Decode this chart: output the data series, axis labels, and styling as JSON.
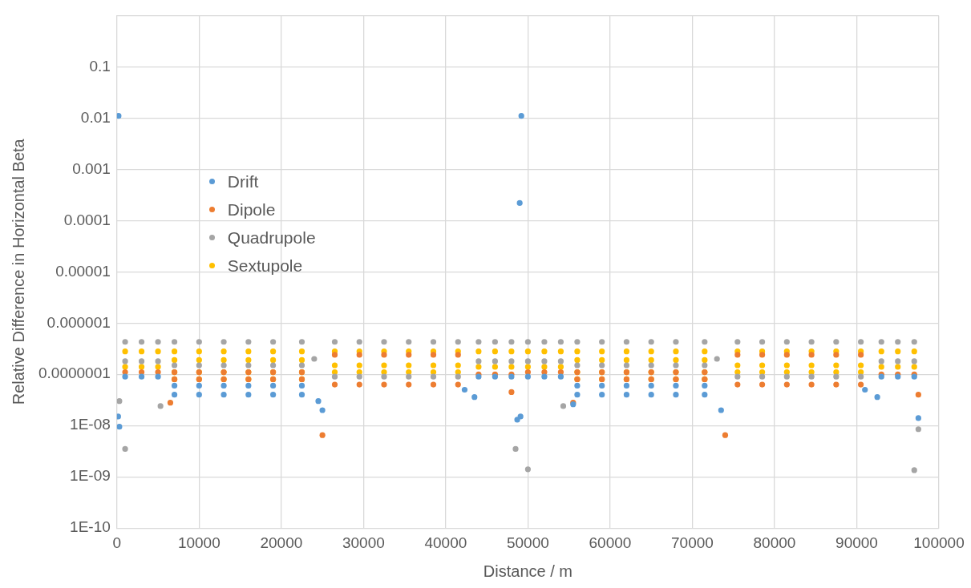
{
  "chart_data": {
    "type": "scatter",
    "xlabel": "Distance / m",
    "ylabel": "Relative Difference in Horizontal Beta",
    "xlim": [
      0,
      100000
    ],
    "xticks": [
      0,
      10000,
      20000,
      30000,
      40000,
      50000,
      60000,
      70000,
      80000,
      90000,
      100000
    ],
    "ylim": [
      1e-10,
      1
    ],
    "log": "y",
    "yticks": [
      {
        "value": 1e-10,
        "label": "1E-10"
      },
      {
        "value": 1e-09,
        "label": "1E-09"
      },
      {
        "value": 1e-08,
        "label": "1E-08"
      },
      {
        "value": 1e-07,
        "label": "0.0000001"
      },
      {
        "value": 1e-06,
        "label": "0.000001"
      },
      {
        "value": 1e-05,
        "label": "0.00001"
      },
      {
        "value": 0.0001,
        "label": "0.0001"
      },
      {
        "value": 0.001,
        "label": "0.001"
      },
      {
        "value": 0.01,
        "label": "0.01"
      },
      {
        "value": 0.1,
        "label": "0.1"
      },
      {
        "value": 1,
        "label": null
      }
    ],
    "grid": true,
    "legend": "top left",
    "marker": "circle",
    "series": [
      {
        "name": "Drift",
        "color": "#5b9bd5",
        "x": [
          7000,
          10000,
          13000,
          16000,
          19000,
          22500,
          56000,
          59000,
          62000,
          65000,
          68000,
          71500,
          7000,
          10000,
          13000,
          16000,
          19000,
          22500,
          56000,
          59000,
          62000,
          65000,
          68000,
          71500,
          1000,
          3000,
          5000,
          44000,
          46000,
          48000,
          50000,
          52000,
          54000,
          93000,
          95000,
          97000,
          200,
          49200,
          49000,
          300,
          150,
          24500,
          25000,
          42300,
          43500,
          48700,
          49100,
          55500,
          73500,
          91000,
          92500,
          97500
        ],
        "values": [
          6e-08,
          6e-08,
          6e-08,
          6e-08,
          6e-08,
          6e-08,
          6e-08,
          6e-08,
          6e-08,
          6e-08,
          6e-08,
          6e-08,
          4e-08,
          4e-08,
          4e-08,
          4e-08,
          4e-08,
          4e-08,
          4e-08,
          4e-08,
          4e-08,
          4e-08,
          4e-08,
          4e-08,
          9e-08,
          9e-08,
          9e-08,
          9e-08,
          9e-08,
          9e-08,
          9e-08,
          9e-08,
          9e-08,
          9e-08,
          9e-08,
          9e-08,
          0.011,
          0.011,
          0.00022,
          9.5e-09,
          1.5e-08,
          3e-08,
          2e-08,
          5e-08,
          3.6e-08,
          1.3e-08,
          1.5e-08,
          2.6e-08,
          2e-08,
          5e-08,
          3.6e-08,
          1.4e-08
        ]
      },
      {
        "name": "Dipole",
        "color": "#ed7d31",
        "x": [
          1000,
          3000,
          5000,
          44000,
          46000,
          48000,
          50000,
          52000,
          54000,
          93000,
          95000,
          97000,
          7000,
          10000,
          13000,
          16000,
          19000,
          22500,
          56000,
          59000,
          62000,
          65000,
          68000,
          71500,
          7000,
          10000,
          13000,
          16000,
          19000,
          22500,
          56000,
          59000,
          62000,
          65000,
          68000,
          71500,
          26500,
          29500,
          32500,
          35500,
          38500,
          41500,
          75500,
          78500,
          81500,
          84500,
          87500,
          90500,
          26500,
          29500,
          32500,
          35500,
          38500,
          41500,
          75500,
          78500,
          81500,
          84500,
          87500,
          90500,
          25000,
          74000,
          6500,
          55500,
          97500,
          48000
        ],
        "values": [
          1.1e-07,
          1.1e-07,
          1.1e-07,
          1e-07,
          1e-07,
          1e-07,
          1.1e-07,
          1.1e-07,
          1.1e-07,
          1e-07,
          1e-07,
          1e-07,
          1.1e-07,
          1.1e-07,
          1.1e-07,
          1.1e-07,
          1.1e-07,
          1.1e-07,
          1.1e-07,
          1.1e-07,
          1.1e-07,
          1.1e-07,
          1.1e-07,
          1.1e-07,
          8e-08,
          8e-08,
          8e-08,
          8e-08,
          8e-08,
          8e-08,
          8e-08,
          8e-08,
          8e-08,
          8e-08,
          8e-08,
          8e-08,
          2.4e-07,
          2.4e-07,
          2.4e-07,
          2.4e-07,
          2.4e-07,
          2.4e-07,
          2.4e-07,
          2.4e-07,
          2.4e-07,
          2.4e-07,
          2.4e-07,
          2.4e-07,
          6.3e-08,
          6.3e-08,
          6.3e-08,
          6.3e-08,
          6.3e-08,
          6.3e-08,
          6.3e-08,
          6.3e-08,
          6.3e-08,
          6.3e-08,
          6.3e-08,
          6.3e-08,
          6.5e-09,
          6.5e-09,
          2.8e-08,
          2.8e-08,
          4e-08,
          4.5e-08
        ]
      },
      {
        "name": "Quadrupole",
        "color": "#a5a5a5",
        "x": [
          1000,
          3000,
          5000,
          44000,
          46000,
          48000,
          50000,
          52000,
          54000,
          93000,
          95000,
          97000,
          7000,
          10000,
          13000,
          16000,
          19000,
          22500,
          56000,
          59000,
          62000,
          65000,
          68000,
          71500,
          26500,
          29500,
          32500,
          35500,
          38500,
          41500,
          75500,
          78500,
          81500,
          84500,
          87500,
          90500,
          1000,
          3000,
          5000,
          44000,
          46000,
          48000,
          50000,
          52000,
          54000,
          93000,
          95000,
          97000,
          7000,
          10000,
          13000,
          16000,
          19000,
          22500,
          56000,
          59000,
          62000,
          65000,
          68000,
          71500,
          26500,
          29500,
          32500,
          35500,
          38500,
          41500,
          75500,
          78500,
          81500,
          84500,
          87500,
          90500,
          1000,
          50000,
          97000,
          97500,
          48500,
          5300,
          54300,
          300,
          24000,
          73000
        ],
        "values": [
          4.3e-07,
          4.3e-07,
          4.3e-07,
          4.3e-07,
          4.3e-07,
          4.3e-07,
          4.3e-07,
          4.3e-07,
          4.3e-07,
          4.3e-07,
          4.3e-07,
          4.3e-07,
          4.3e-07,
          4.3e-07,
          4.3e-07,
          4.3e-07,
          4.3e-07,
          4.3e-07,
          4.3e-07,
          4.3e-07,
          4.3e-07,
          4.3e-07,
          4.3e-07,
          4.3e-07,
          4.3e-07,
          4.3e-07,
          4.3e-07,
          4.3e-07,
          4.3e-07,
          4.3e-07,
          4.3e-07,
          4.3e-07,
          4.3e-07,
          4.3e-07,
          4.3e-07,
          4.3e-07,
          1.8e-07,
          1.8e-07,
          1.8e-07,
          1.8e-07,
          1.8e-07,
          1.8e-07,
          1.8e-07,
          1.8e-07,
          1.8e-07,
          1.8e-07,
          1.8e-07,
          1.8e-07,
          1.5e-07,
          1.5e-07,
          1.5e-07,
          1.5e-07,
          1.5e-07,
          1.5e-07,
          1.5e-07,
          1.5e-07,
          1.5e-07,
          1.5e-07,
          1.5e-07,
          1.5e-07,
          9e-08,
          9e-08,
          9e-08,
          9e-08,
          9e-08,
          9e-08,
          9e-08,
          9e-08,
          9e-08,
          9e-08,
          9e-08,
          9e-08,
          3.5e-09,
          1.4e-09,
          1.35e-09,
          8.5e-09,
          3.5e-09,
          2.4e-08,
          2.4e-08,
          3e-08,
          2e-07,
          2e-07
        ]
      },
      {
        "name": "Sextupole",
        "color": "#ffc000",
        "x": [
          1000,
          3000,
          5000,
          44000,
          46000,
          48000,
          50000,
          52000,
          54000,
          93000,
          95000,
          97000,
          1000,
          3000,
          5000,
          44000,
          46000,
          48000,
          50000,
          52000,
          54000,
          93000,
          95000,
          97000,
          7000,
          10000,
          13000,
          16000,
          19000,
          22500,
          56000,
          59000,
          62000,
          65000,
          68000,
          71500,
          7000,
          10000,
          13000,
          16000,
          19000,
          22500,
          56000,
          59000,
          62000,
          65000,
          68000,
          71500,
          7000,
          10000,
          13000,
          16000,
          19000,
          22500,
          56000,
          59000,
          62000,
          65000,
          68000,
          71500,
          7000,
          10000,
          13000,
          16000,
          19000,
          22500,
          56000,
          59000,
          62000,
          65000,
          68000,
          71500,
          26500,
          29500,
          32500,
          35500,
          38500,
          41500,
          75500,
          78500,
          81500,
          84500,
          87500,
          90500,
          26500,
          29500,
          32500,
          35500,
          38500,
          41500,
          75500,
          78500,
          81500,
          84500,
          87500,
          90500,
          26500,
          29500,
          32500,
          35500,
          38500,
          41500,
          75500,
          78500,
          81500,
          84500,
          87500,
          90500
        ],
        "values": [
          2.8e-07,
          2.8e-07,
          2.8e-07,
          2.8e-07,
          2.8e-07,
          2.8e-07,
          2.8e-07,
          2.8e-07,
          2.8e-07,
          2.8e-07,
          2.8e-07,
          2.8e-07,
          1.4e-07,
          1.4e-07,
          1.4e-07,
          1.4e-07,
          1.4e-07,
          1.4e-07,
          1.4e-07,
          1.4e-07,
          1.4e-07,
          1.4e-07,
          1.4e-07,
          1.4e-07,
          2.8e-07,
          2.8e-07,
          2.8e-07,
          2.8e-07,
          2.8e-07,
          2.8e-07,
          2.8e-07,
          2.8e-07,
          2.8e-07,
          2.8e-07,
          2.8e-07,
          2.8e-07,
          1.9e-07,
          1.9e-07,
          1.9e-07,
          1.9e-07,
          1.9e-07,
          1.9e-07,
          1.9e-07,
          1.9e-07,
          1.9e-07,
          1.9e-07,
          1.9e-07,
          1.9e-07,
          1.1e-07,
          1.1e-07,
          1.1e-07,
          1.1e-07,
          1.1e-07,
          1.1e-07,
          1.1e-07,
          1.1e-07,
          1.1e-07,
          1.1e-07,
          1.1e-07,
          1.1e-07,
          8e-08,
          8e-08,
          8e-08,
          8e-08,
          8e-08,
          8e-08,
          8e-08,
          8e-08,
          8e-08,
          8e-08,
          8e-08,
          8e-08,
          2.8e-07,
          2.8e-07,
          2.8e-07,
          2.8e-07,
          2.8e-07,
          2.8e-07,
          2.8e-07,
          2.8e-07,
          2.8e-07,
          2.8e-07,
          2.8e-07,
          2.8e-07,
          1.5e-07,
          1.5e-07,
          1.5e-07,
          1.5e-07,
          1.5e-07,
          1.5e-07,
          1.5e-07,
          1.5e-07,
          1.5e-07,
          1.5e-07,
          1.5e-07,
          1.5e-07,
          1.1e-07,
          1.1e-07,
          1.1e-07,
          1.1e-07,
          1.1e-07,
          1.1e-07,
          1.1e-07,
          1.1e-07,
          1.1e-07,
          1.1e-07,
          1.1e-07,
          1.1e-07
        ]
      }
    ]
  }
}
